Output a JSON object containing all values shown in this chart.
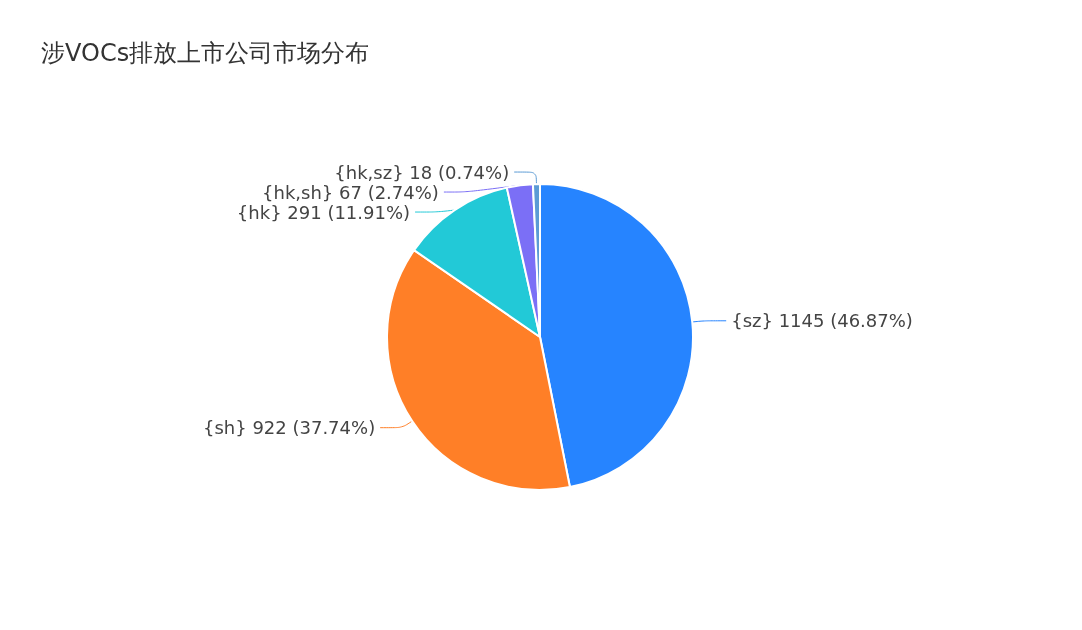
{
  "chart_data": {
    "type": "pie",
    "title": "涉VOCs排放上市公司市场分布",
    "categories": [
      "{sz}",
      "{sh}",
      "{hk}",
      "{hk,sh}",
      "{hk,sz}"
    ],
    "values": [
      1145,
      922,
      291,
      67,
      18
    ],
    "value_labels": [
      "1145 (46.87%)",
      "922 (37.74%)",
      "291 (11.91%)",
      "67 (2.74%)",
      "18 (0.74%)"
    ],
    "colors": [
      "#2684ff",
      "#ff7f27",
      "#22c9d7",
      "#7b6ff6",
      "#5b9bd5"
    ],
    "legend": false
  }
}
